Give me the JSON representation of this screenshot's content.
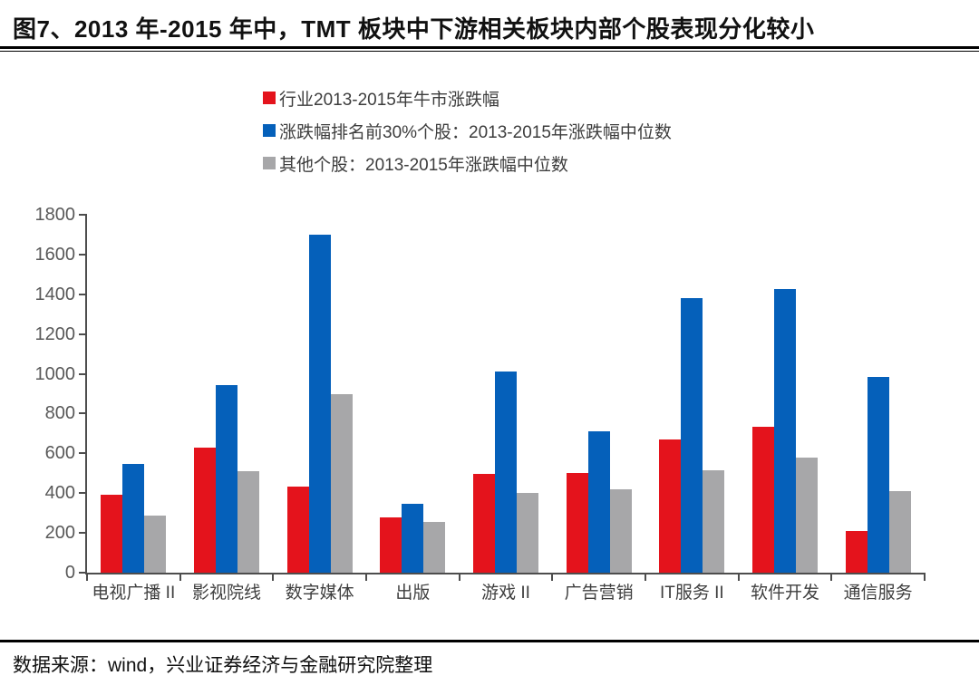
{
  "header": {
    "title": "图7、2013 年-2015 年中，TMT 板块中下游相关板块内部个股表现分化较小"
  },
  "footer": {
    "source": "数据来源：wind，兴业证券经济与金融研究院整理"
  },
  "colors": {
    "series_industry_red": "#e4131c",
    "series_top30_blue": "#0560ba",
    "series_other_gray": "#a7a7a9",
    "axis": "#4d4d4d",
    "rule": "#000000"
  },
  "chart_data": {
    "type": "bar",
    "title": "",
    "xlabel": "",
    "ylabel": "",
    "categories": [
      "电视广播 II",
      "影视院线",
      "数字媒体",
      "出版",
      "游戏 II",
      "广告营销",
      "IT服务 II",
      "软件开发",
      "通信服务"
    ],
    "series": [
      {
        "name": "行业2013-2015年牛市涨跌幅",
        "color": "#e4131c",
        "values": [
          390,
          630,
          435,
          280,
          495,
          500,
          670,
          735,
          210
        ]
      },
      {
        "name": "涨跌幅排名前30%个股：2013-2015年涨跌幅中位数",
        "color": "#0560ba",
        "values": [
          545,
          945,
          1700,
          345,
          1010,
          710,
          1380,
          1425,
          985
        ]
      },
      {
        "name": "其他个股：2013-2015年涨跌幅中位数",
        "color": "#a7a7a9",
        "values": [
          285,
          510,
          900,
          255,
          400,
          420,
          515,
          580,
          410
        ]
      }
    ],
    "ylim": [
      0,
      1800
    ],
    "ytick_step": 200,
    "ytick_labels": [
      "0",
      "200",
      "400",
      "600",
      "800",
      "1000",
      "1200",
      "1400",
      "1600",
      "1800"
    ],
    "grid": false,
    "legend_position": "top"
  }
}
